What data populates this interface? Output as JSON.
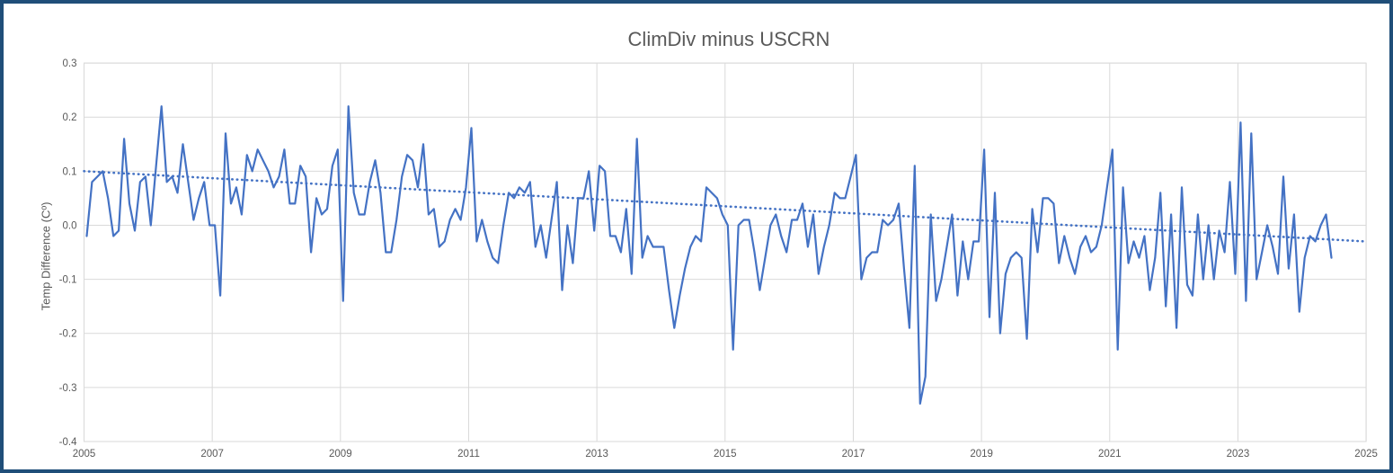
{
  "window": {
    "border_color": "#1F4E79",
    "background_color": "#FFFFFF"
  },
  "chart_data": {
    "type": "line",
    "title": "ClimDiv minus USCRN",
    "xlabel": "",
    "ylabel": "Temp Difference (Cº)",
    "ylim": [
      -0.4,
      0.3
    ],
    "ytick_step": 0.1,
    "yticks": [
      "0.3",
      "0.2",
      "0.1",
      "0.0",
      "-0.1",
      "-0.2",
      "-0.3",
      "-0.4"
    ],
    "xticks": [
      "2005",
      "2007",
      "2009",
      "2011",
      "2013",
      "2015",
      "2017",
      "2019",
      "2021",
      "2023",
      "2025"
    ],
    "x_axis_start_year": 2005,
    "x_axis_end_year": 2025,
    "grid": true,
    "legend": "none",
    "line_color": "#4472C4",
    "grid_color": "#D9D9D9",
    "text_color": "#595959",
    "frequency": "monthly",
    "start_month": "2005-01",
    "end_month": "2024-06",
    "values": [
      -0.02,
      0.08,
      0.09,
      0.1,
      0.05,
      -0.02,
      -0.01,
      0.16,
      0.04,
      -0.01,
      0.08,
      0.09,
      0.0,
      0.11,
      0.22,
      0.08,
      0.09,
      0.06,
      0.15,
      0.08,
      0.01,
      0.05,
      0.08,
      0.0,
      0.0,
      -0.13,
      0.17,
      0.04,
      0.07,
      0.02,
      0.13,
      0.1,
      0.14,
      0.12,
      0.1,
      0.07,
      0.09,
      0.14,
      0.04,
      0.04,
      0.11,
      0.09,
      -0.05,
      0.05,
      0.02,
      0.03,
      0.11,
      0.14,
      -0.14,
      0.22,
      0.06,
      0.02,
      0.02,
      0.08,
      0.12,
      0.06,
      -0.05,
      -0.05,
      0.01,
      0.09,
      0.13,
      0.12,
      0.07,
      0.15,
      0.02,
      0.03,
      -0.04,
      -0.03,
      0.01,
      0.03,
      0.01,
      0.07,
      0.18,
      -0.03,
      0.01,
      -0.03,
      -0.06,
      -0.07,
      0.0,
      0.06,
      0.05,
      0.07,
      0.06,
      0.08,
      -0.04,
      0.0,
      -0.06,
      0.01,
      0.08,
      -0.12,
      0.0,
      -0.07,
      0.05,
      0.05,
      0.1,
      -0.01,
      0.11,
      0.1,
      -0.02,
      -0.02,
      -0.05,
      0.03,
      -0.09,
      0.16,
      -0.06,
      -0.02,
      -0.04,
      -0.04,
      -0.04,
      -0.12,
      -0.19,
      -0.13,
      -0.08,
      -0.04,
      -0.02,
      -0.03,
      0.07,
      0.06,
      0.05,
      0.02,
      0.0,
      -0.23,
      0.0,
      0.01,
      0.01,
      -0.05,
      -0.12,
      -0.06,
      0.0,
      0.02,
      -0.02,
      -0.05,
      0.01,
      0.01,
      0.04,
      -0.04,
      0.02,
      -0.09,
      -0.04,
      0.0,
      0.06,
      0.05,
      0.05,
      0.09,
      0.13,
      -0.1,
      -0.06,
      -0.05,
      -0.05,
      0.01,
      0.0,
      0.01,
      0.04,
      -0.08,
      -0.19,
      0.11,
      -0.33,
      -0.28,
      0.02,
      -0.14,
      -0.1,
      -0.04,
      0.02,
      -0.13,
      -0.03,
      -0.1,
      -0.03,
      -0.03,
      0.14,
      -0.17,
      0.06,
      -0.2,
      -0.09,
      -0.06,
      -0.05,
      -0.06,
      -0.21,
      0.03,
      -0.05,
      0.05,
      0.05,
      0.04,
      -0.07,
      -0.02,
      -0.06,
      -0.09,
      -0.04,
      -0.02,
      -0.05,
      -0.04,
      0.0,
      0.07,
      0.14,
      -0.23,
      0.07,
      -0.07,
      -0.03,
      -0.06,
      -0.02,
      -0.12,
      -0.06,
      0.06,
      -0.15,
      0.02,
      -0.19,
      0.07,
      -0.11,
      -0.13,
      0.02,
      -0.1,
      0.0,
      -0.1,
      -0.01,
      -0.05,
      0.08,
      -0.09,
      0.19,
      -0.14,
      0.17,
      -0.1,
      -0.05,
      0.0,
      -0.04,
      -0.09,
      0.09,
      -0.08,
      0.02,
      -0.16,
      -0.06,
      -0.02,
      -0.03,
      0.0,
      0.02,
      -0.06
    ],
    "trendline": {
      "style": "dotted",
      "start_value": 0.1,
      "end_value": -0.03
    }
  }
}
